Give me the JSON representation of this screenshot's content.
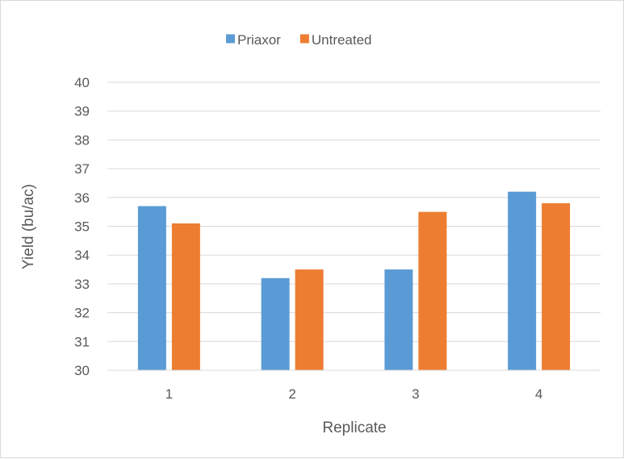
{
  "chart_data": {
    "type": "bar",
    "categories": [
      "1",
      "2",
      "3",
      "4"
    ],
    "series": [
      {
        "name": "Priaxor",
        "color": "#5b9bd5",
        "values": [
          35.7,
          33.2,
          33.5,
          36.2
        ]
      },
      {
        "name": "Untreated",
        "color": "#ed7d31",
        "values": [
          35.1,
          33.5,
          35.5,
          35.8
        ]
      }
    ],
    "xlabel": "Replicate",
    "ylabel": "Yield (bu/ac)",
    "ylim": [
      30,
      40
    ],
    "yticks": [
      "30",
      "31",
      "32",
      "33",
      "34",
      "35",
      "36",
      "37",
      "38",
      "39",
      "40"
    ],
    "grid": true,
    "legend_position": "top"
  }
}
